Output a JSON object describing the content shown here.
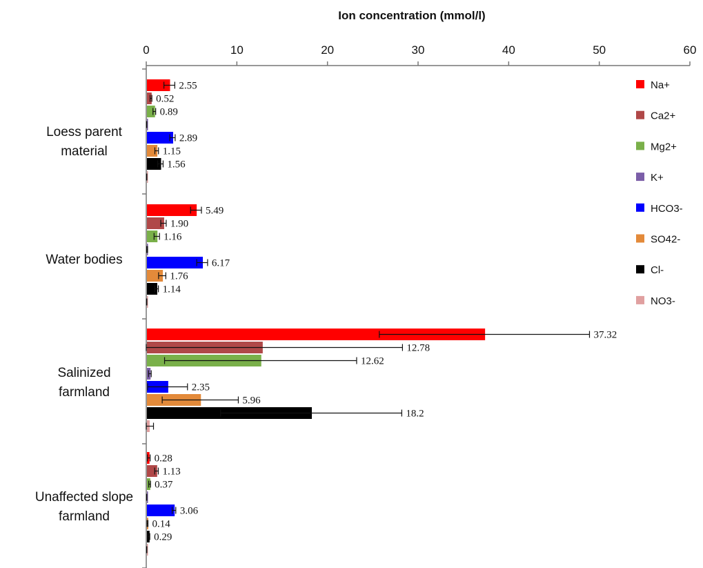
{
  "chart_data": {
    "type": "bar",
    "orientation": "horizontal",
    "title": "Ion concentration (mmol/l)",
    "xlabel": "Ion concentration (mmol/l)",
    "ylabel": "",
    "xlim": [
      0,
      60
    ],
    "x_ticks": [
      0,
      10,
      20,
      30,
      40,
      50,
      60
    ],
    "x_axis_position": "top",
    "grid": false,
    "legend_position": "right",
    "categories": [
      [
        "Loess parent",
        "material"
      ],
      [
        "Water bodies"
      ],
      [
        "Salinized",
        "farmland"
      ],
      [
        "Unaffected slope",
        "farmland"
      ]
    ],
    "series": [
      {
        "name": "Na+",
        "color": "#ff0000",
        "values": [
          2.55,
          5.49,
          37.32,
          0.28
        ],
        "errors": [
          0.6,
          0.6,
          11.6,
          0.15
        ],
        "labels": [
          "2.55",
          "5.49",
          "37.32",
          "0.28"
        ]
      },
      {
        "name": "Ca2+",
        "color": "#b04848",
        "values": [
          0.52,
          1.9,
          12.78,
          1.13
        ],
        "errors": [
          0.1,
          0.3,
          15.5,
          0.2
        ],
        "labels": [
          "0.52",
          "1.90",
          "12.78",
          "1.13"
        ]
      },
      {
        "name": "Mg2+",
        "color": "#7ab04a",
        "values": [
          0.89,
          1.16,
          12.62,
          0.37
        ],
        "errors": [
          0.15,
          0.3,
          10.6,
          0.1
        ],
        "labels": [
          "0.89",
          "1.16",
          "12.62",
          "0.37"
        ]
      },
      {
        "name": "K+",
        "color": "#7b5ea8",
        "values": [
          0.05,
          0.1,
          0.4,
          0.05
        ],
        "errors": [
          0.02,
          0.05,
          0.15,
          0.02
        ],
        "labels": [
          "",
          "",
          "",
          ""
        ]
      },
      {
        "name": "HCO3-",
        "color": "#0000ff",
        "values": [
          2.89,
          6.17,
          2.35,
          3.06
        ],
        "errors": [
          0.3,
          0.6,
          2.2,
          0.2
        ],
        "labels": [
          "2.89",
          "6.17",
          "2.35",
          "3.06"
        ]
      },
      {
        "name": "SO42-",
        "color": "#e38a3a",
        "values": [
          1.15,
          1.76,
          5.96,
          0.14
        ],
        "errors": [
          0.2,
          0.4,
          4.2,
          0.05
        ],
        "labels": [
          "1.15",
          "1.76",
          "5.96",
          "0.14"
        ]
      },
      {
        "name": "Cl-",
        "color": "#000000",
        "values": [
          1.56,
          1.14,
          18.2,
          0.29
        ],
        "errors": [
          0.3,
          0.2,
          10.0,
          0.1
        ],
        "labels": [
          "1.56",
          "1.14",
          "18.2",
          "0.29"
        ]
      },
      {
        "name": "NO3-",
        "color": "#e0a0a0",
        "values": [
          0.05,
          0.05,
          0.3,
          0.05
        ],
        "errors": [
          0.02,
          0.02,
          0.5,
          0.02
        ],
        "labels": [
          "",
          "",
          "",
          ""
        ]
      }
    ]
  }
}
